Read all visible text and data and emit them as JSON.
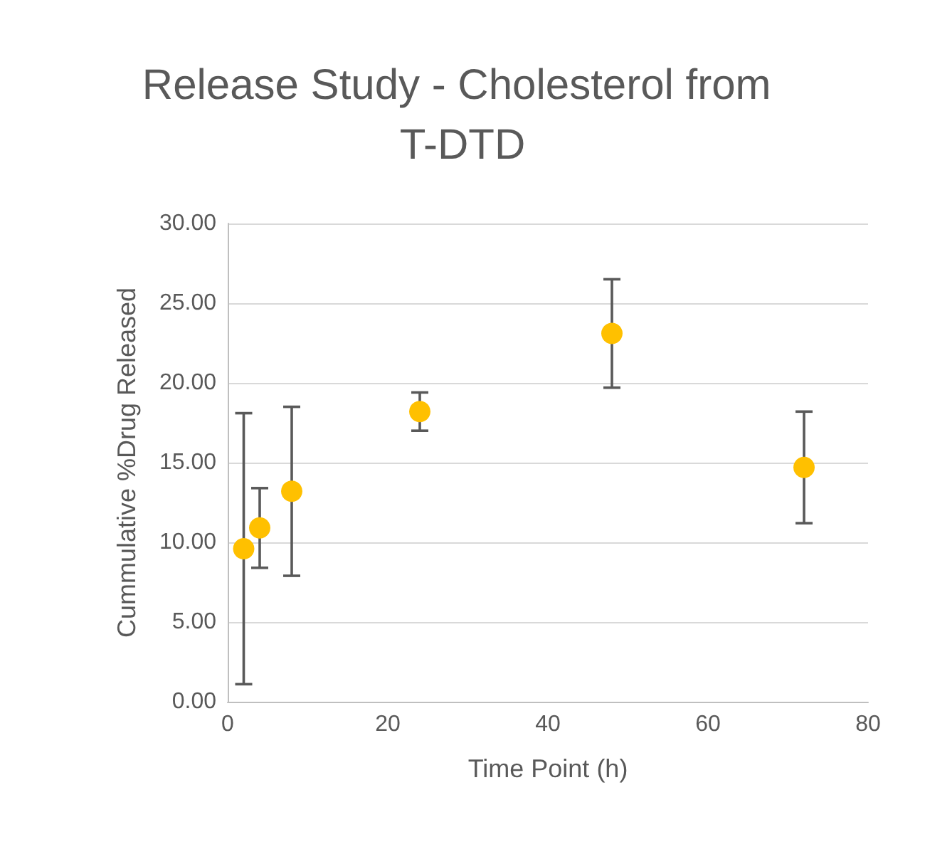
{
  "chart_data": {
    "type": "scatter",
    "title": "Release Study - Cholesterol from T-DTD",
    "xlabel": "Time Point (h)",
    "ylabel": "Cummulative %Drug Released",
    "x": [
      2,
      4,
      8,
      24,
      48,
      72
    ],
    "series": [
      {
        "color": "#ffc000",
        "values": [
          9.6,
          10.9,
          13.2,
          18.2,
          23.1,
          14.7
        ],
        "errors": [
          8.5,
          2.5,
          5.3,
          1.2,
          3.4,
          3.5
        ]
      }
    ],
    "xlim": [
      0,
      80
    ],
    "xticks": [
      0,
      20,
      40,
      60,
      80
    ],
    "ylim": [
      0,
      30
    ],
    "yticks": [
      {
        "value": 0,
        "label": "0.00"
      },
      {
        "value": 5,
        "label": "5.00"
      },
      {
        "value": 10,
        "label": "10.00"
      },
      {
        "value": 15,
        "label": "15.00"
      },
      {
        "value": 20,
        "label": "20.00"
      },
      {
        "value": 25,
        "label": "25.00"
      },
      {
        "value": 30,
        "label": "30.00"
      }
    ],
    "grid": "y",
    "marker": "circle"
  }
}
